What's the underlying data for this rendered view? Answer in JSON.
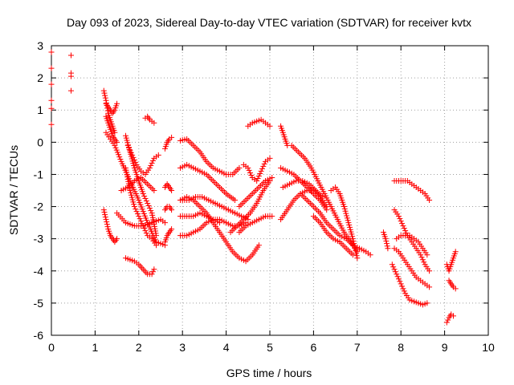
{
  "chart_data": {
    "type": "scatter",
    "title": "Day 093 of 2023, Sidereal Day-to-day VTEC variation (SDTVAR) for receiver kvtx",
    "xlabel": "GPS time / hours",
    "ylabel": "SDTVAR / TECUs",
    "xlim": [
      0,
      10
    ],
    "ylim": [
      -6,
      3
    ],
    "xticks": [
      "0",
      "1",
      "2",
      "3",
      "4",
      "5",
      "6",
      "7",
      "8",
      "9",
      "10"
    ],
    "yticks": [
      "3",
      "2",
      "1",
      "0",
      "-1",
      "-2",
      "-3",
      "-4",
      "-5",
      "-6"
    ],
    "grid": true,
    "marker": "+",
    "color": "#ff0000",
    "series": [
      {
        "name": "arc-0",
        "x": [
          0.0,
          0.0,
          0.0,
          0.0,
          0.0,
          0.0
        ],
        "y": [
          2.8,
          2.3,
          1.8,
          1.3,
          1.05,
          0.55
        ]
      },
      {
        "name": "arc-0b",
        "x": [
          0.45,
          0.45,
          0.45,
          0.45
        ],
        "y": [
          2.7,
          2.15,
          2.05,
          1.6
        ]
      },
      {
        "name": "arc-1",
        "x": [
          1.2,
          1.25,
          1.3,
          1.35,
          1.4,
          1.45
        ],
        "y": [
          1.6,
          1.3,
          0.9,
          0.7,
          0.5,
          0.3
        ]
      },
      {
        "name": "arc-1b",
        "x": [
          1.25,
          1.3,
          1.35,
          1.4,
          1.45,
          1.5
        ],
        "y": [
          0.8,
          0.6,
          0.4,
          0.2,
          0.1,
          0.0
        ]
      },
      {
        "name": "arc-1c",
        "x": [
          1.25,
          1.3,
          1.35,
          1.4,
          1.45,
          1.5
        ],
        "y": [
          1.2,
          1.1,
          1.0,
          0.9,
          1.0,
          1.2
        ]
      },
      {
        "name": "arc-2",
        "x": [
          1.2,
          1.25,
          1.3,
          1.35,
          1.4,
          1.45,
          1.5
        ],
        "y": [
          -2.1,
          -2.4,
          -2.7,
          -2.9,
          -3.0,
          -3.1,
          -3.0
        ]
      },
      {
        "name": "arc-3",
        "x": [
          1.25,
          1.35,
          1.45,
          1.6,
          1.8,
          2.0,
          2.2,
          2.4,
          2.6
        ],
        "y": [
          0.3,
          0.1,
          -0.1,
          -0.6,
          -1.2,
          -1.8,
          -2.5,
          -3.1,
          -3.2
        ]
      },
      {
        "name": "arc-4",
        "x": [
          1.5,
          1.7,
          1.9,
          2.1,
          2.3,
          2.5,
          2.6
        ],
        "y": [
          -2.2,
          -2.5,
          -2.6,
          -2.6,
          -2.5,
          -2.4,
          -2.5
        ]
      },
      {
        "name": "arc-5",
        "x": [
          1.7,
          1.8,
          1.9,
          2.0,
          2.1,
          2.2,
          2.3,
          2.4
        ],
        "y": [
          0.2,
          -0.3,
          -0.8,
          -1.2,
          -1.6,
          -1.9,
          -2.2,
          -2.9
        ]
      },
      {
        "name": "arc-6",
        "x": [
          1.7,
          1.8,
          1.9,
          2.0,
          2.1,
          2.2,
          2.3,
          2.4
        ],
        "y": [
          -0.8,
          -1.5,
          -2.0,
          -2.3,
          -2.6,
          -2.9,
          -3.0,
          -3.2
        ]
      },
      {
        "name": "arc-7",
        "x": [
          1.75,
          1.85,
          1.95,
          2.05,
          2.15,
          2.25,
          2.35,
          2.45
        ],
        "y": [
          -0.1,
          -0.4,
          -0.7,
          -0.9,
          -1.0,
          -0.8,
          -0.5,
          -0.4
        ]
      },
      {
        "name": "arc-8",
        "x": [
          1.7,
          1.8,
          1.9,
          2.0,
          2.1,
          2.2,
          2.3,
          2.35
        ],
        "y": [
          -3.6,
          -3.65,
          -3.7,
          -3.8,
          -3.95,
          -4.1,
          -4.1,
          -3.95
        ]
      },
      {
        "name": "arc-9",
        "x": [
          1.6,
          1.75,
          1.9,
          2.05,
          2.2,
          2.35
        ],
        "y": [
          -1.5,
          -1.4,
          -1.2,
          -1.1,
          -1.3,
          -1.5
        ]
      },
      {
        "name": "arc-10",
        "x": [
          2.15,
          2.2,
          2.25,
          2.3,
          2.35
        ],
        "y": [
          0.75,
          0.8,
          0.7,
          0.65,
          0.6
        ]
      },
      {
        "name": "arc-11",
        "x": [
          2.6,
          2.65,
          2.7,
          2.75
        ],
        "y": [
          -0.2,
          0.0,
          0.1,
          0.15
        ]
      },
      {
        "name": "arc-12",
        "x": [
          2.6,
          2.65,
          2.7,
          2.75
        ],
        "y": [
          -1.4,
          -1.3,
          -1.4,
          -1.5
        ]
      },
      {
        "name": "arc-13",
        "x": [
          2.6,
          2.65,
          2.7,
          2.75
        ],
        "y": [
          -2.1,
          -2.0,
          -2.0,
          -2.1
        ]
      },
      {
        "name": "arc-14",
        "x": [
          2.6,
          2.65,
          2.7,
          2.75
        ],
        "y": [
          -3.1,
          -2.9,
          -2.8,
          -2.7
        ]
      },
      {
        "name": "arc-15",
        "x": [
          2.95,
          3.1,
          3.25,
          3.4,
          3.55,
          3.7,
          3.85,
          4.0,
          4.15,
          4.3
        ],
        "y": [
          0.05,
          0.1,
          -0.1,
          -0.3,
          -0.6,
          -0.8,
          -0.9,
          -1.0,
          -1.0,
          -0.8
        ]
      },
      {
        "name": "arc-16",
        "x": [
          2.95,
          3.1,
          3.25,
          3.4,
          3.55,
          3.7,
          3.85,
          4.0,
          4.2
        ],
        "y": [
          -0.8,
          -0.7,
          -0.8,
          -0.9,
          -1.0,
          -1.2,
          -1.4,
          -1.6,
          -1.8
        ]
      },
      {
        "name": "arc-17",
        "x": [
          2.95,
          3.1,
          3.25,
          3.4,
          3.55,
          3.7,
          3.85,
          4.0,
          4.15,
          4.3,
          4.45,
          4.6,
          4.75
        ],
        "y": [
          -1.8,
          -1.7,
          -1.8,
          -2.0,
          -2.2,
          -2.5,
          -2.8,
          -3.1,
          -3.4,
          -3.6,
          -3.7,
          -3.5,
          -3.2
        ]
      },
      {
        "name": "arc-18",
        "x": [
          2.95,
          3.1,
          3.25,
          3.4,
          3.55,
          3.7,
          3.85
        ],
        "y": [
          -2.3,
          -2.3,
          -2.3,
          -2.2,
          -2.3,
          -2.4,
          -2.5
        ]
      },
      {
        "name": "arc-19",
        "x": [
          2.95,
          3.1,
          3.25,
          3.4,
          3.55,
          3.7,
          3.85,
          4.0,
          4.15,
          4.3,
          4.45
        ],
        "y": [
          -2.9,
          -2.9,
          -2.8,
          -2.7,
          -2.5,
          -2.4,
          -2.4,
          -2.5,
          -2.6,
          -2.6,
          -2.5
        ]
      },
      {
        "name": "arc-20",
        "x": [
          3.0,
          3.15,
          3.3,
          3.45,
          3.6,
          3.75,
          3.9,
          4.05,
          4.2,
          4.35,
          4.5
        ],
        "y": [
          -1.8,
          -1.8,
          -1.7,
          -1.7,
          -1.8,
          -1.9,
          -2.0,
          -2.1,
          -2.2,
          -2.3,
          -2.4
        ]
      },
      {
        "name": "arc-21",
        "x": [
          4.1,
          4.25,
          4.4,
          4.55,
          4.7,
          4.85,
          5.0
        ],
        "y": [
          -2.8,
          -2.6,
          -2.4,
          -2.2,
          -1.9,
          -1.5,
          -1.2
        ]
      },
      {
        "name": "arc-22",
        "x": [
          4.3,
          4.45,
          4.6,
          4.75,
          4.9,
          5.05
        ],
        "y": [
          -2.0,
          -1.8,
          -1.6,
          -1.4,
          -1.2,
          -1.1
        ]
      },
      {
        "name": "arc-23",
        "x": [
          4.4,
          4.5,
          4.6,
          4.7,
          4.8,
          4.9,
          5.0
        ],
        "y": [
          -0.7,
          -0.8,
          -1.1,
          -1.2,
          -0.9,
          -0.6,
          -0.5
        ]
      },
      {
        "name": "arc-24",
        "x": [
          4.5,
          4.6,
          4.7,
          4.8,
          4.9,
          5.0
        ],
        "y": [
          0.5,
          0.6,
          0.65,
          0.7,
          0.6,
          0.5
        ]
      },
      {
        "name": "arc-25",
        "x": [
          4.3,
          4.45,
          4.6,
          4.75,
          4.9,
          5.05
        ],
        "y": [
          -2.8,
          -2.6,
          -2.5,
          -2.4,
          -2.3,
          -2.3
        ]
      },
      {
        "name": "arc-26",
        "x": [
          5.25,
          5.3,
          5.35,
          5.4
        ],
        "y": [
          0.5,
          0.3,
          0.1,
          -0.1
        ]
      },
      {
        "name": "arc-27",
        "x": [
          5.25,
          5.4,
          5.55,
          5.7,
          5.85,
          6.0,
          6.15,
          6.3
        ],
        "y": [
          -0.8,
          -0.9,
          -1.0,
          -1.2,
          -1.4,
          -1.6,
          -1.8,
          -2.1
        ]
      },
      {
        "name": "arc-28",
        "x": [
          5.3,
          5.45,
          5.6,
          5.75,
          5.9,
          6.05,
          6.2
        ],
        "y": [
          -1.4,
          -1.3,
          -1.2,
          -1.2,
          -1.3,
          -1.5,
          -1.7
        ]
      },
      {
        "name": "arc-29",
        "x": [
          5.25,
          5.4,
          5.55,
          5.7,
          5.85,
          6.0,
          6.15,
          6.3
        ],
        "y": [
          -2.4,
          -2.1,
          -1.8,
          -1.6,
          -1.5,
          -1.5,
          -1.7,
          -2.0
        ]
      },
      {
        "name": "arc-30",
        "x": [
          5.5,
          5.65,
          5.8,
          5.95,
          6.1,
          6.25,
          6.4,
          6.55,
          6.7,
          6.85,
          7.0
        ],
        "y": [
          -0.1,
          -0.3,
          -0.5,
          -0.8,
          -1.2,
          -1.6,
          -2.0,
          -2.4,
          -2.8,
          -3.1,
          -3.4
        ]
      },
      {
        "name": "arc-31",
        "x": [
          5.7,
          5.85,
          6.0,
          6.15,
          6.3,
          6.45,
          6.6,
          6.75,
          6.9,
          7.05,
          7.2,
          7.3
        ],
        "y": [
          -1.6,
          -1.8,
          -2.0,
          -2.2,
          -2.5,
          -2.7,
          -2.9,
          -3.0,
          -3.2,
          -3.3,
          -3.4,
          -3.5
        ]
      },
      {
        "name": "arc-32",
        "x": [
          6.0,
          6.15,
          6.3,
          6.45,
          6.6,
          6.75,
          6.9
        ],
        "y": [
          -2.3,
          -2.5,
          -2.8,
          -3.0,
          -3.1,
          -3.3,
          -3.5
        ]
      },
      {
        "name": "arc-33",
        "x": [
          6.4,
          6.5,
          6.6,
          6.7,
          6.8,
          6.9,
          7.0
        ],
        "y": [
          -1.5,
          -1.4,
          -1.6,
          -2.0,
          -2.5,
          -3.0,
          -3.6
        ]
      },
      {
        "name": "arc-34",
        "x": [
          7.6,
          7.65,
          7.7
        ],
        "y": [
          -2.8,
          -3.0,
          -3.3
        ]
      },
      {
        "name": "arc-35",
        "x": [
          7.85,
          7.95,
          8.05,
          8.15,
          8.25,
          8.35,
          8.45,
          8.55,
          8.65
        ],
        "y": [
          -1.2,
          -1.2,
          -1.2,
          -1.2,
          -1.3,
          -1.4,
          -1.5,
          -1.6,
          -1.8
        ]
      },
      {
        "name": "arc-36",
        "x": [
          7.85,
          7.95,
          8.05,
          8.15,
          8.25,
          8.35,
          8.45,
          8.55,
          8.65
        ],
        "y": [
          -2.1,
          -2.3,
          -2.6,
          -2.9,
          -3.1,
          -3.3,
          -3.5,
          -3.8,
          -4.0
        ]
      },
      {
        "name": "arc-37",
        "x": [
          7.85,
          7.95,
          8.05,
          8.15,
          8.25,
          8.35,
          8.45,
          8.55,
          8.65
        ],
        "y": [
          -3.3,
          -3.4,
          -3.6,
          -3.8,
          -4.0,
          -4.2,
          -4.3,
          -4.4,
          -4.5
        ]
      },
      {
        "name": "arc-38",
        "x": [
          7.9,
          8.0,
          8.1,
          8.2,
          8.3,
          8.4,
          8.5,
          8.6
        ],
        "y": [
          -3.0,
          -2.9,
          -2.9,
          -2.9,
          -3.0,
          -3.1,
          -3.3,
          -3.5
        ]
      },
      {
        "name": "arc-39",
        "x": [
          7.8,
          7.9,
          8.0,
          8.1,
          8.2,
          8.3,
          8.4,
          8.5,
          8.6
        ],
        "y": [
          -3.8,
          -4.1,
          -4.4,
          -4.7,
          -4.9,
          -4.95,
          -5.0,
          -5.05,
          -5.0
        ]
      },
      {
        "name": "arc-40",
        "x": [
          9.05,
          9.1,
          9.15,
          9.2,
          9.25
        ],
        "y": [
          -3.8,
          -4.0,
          -3.8,
          -3.6,
          -3.4
        ]
      },
      {
        "name": "arc-41",
        "x": [
          9.1,
          9.15,
          9.2,
          9.25
        ],
        "y": [
          -4.3,
          -4.4,
          -4.5,
          -4.55
        ]
      },
      {
        "name": "arc-42",
        "x": [
          9.05,
          9.1,
          9.15,
          9.2
        ],
        "y": [
          -5.6,
          -5.45,
          -5.35,
          -5.4
        ]
      }
    ]
  }
}
